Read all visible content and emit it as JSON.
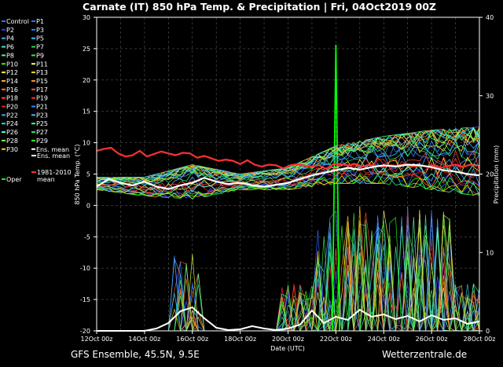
{
  "chart_data": {
    "type": "line",
    "title": "Carnate  (IT)  850 hPa Temp. & Precipitation | Fri, 04Oct2019 00Z",
    "xlabel": "Date (UTC)",
    "ylabel": "850 hPa Temp. (°C)",
    "y2label": "Precipitation (mm)",
    "x_ticks": [
      "12Oct 00z",
      "14Oct 00z",
      "16Oct 00z",
      "18Oct 00z",
      "20Oct 00z",
      "22Oct 00z",
      "24Oct 00z",
      "26Oct 00z",
      "28Oct 00z"
    ],
    "x_range_days": [
      12,
      28
    ],
    "ylim": [
      -20,
      30
    ],
    "y_ticks": [
      30,
      25,
      20,
      15,
      10,
      5,
      0,
      -5,
      -10,
      -15,
      -20
    ],
    "y2lim": [
      0,
      40
    ],
    "y2_ticks": [
      40,
      30,
      20,
      10,
      0
    ],
    "grid": true,
    "legend_position": "left",
    "legend": [
      {
        "label": "Control",
        "color": "#5a5aff"
      },
      {
        "label": "P1",
        "color": "#3a6bff"
      },
      {
        "label": "P2",
        "color": "#3333ff"
      },
      {
        "label": "P3",
        "color": "#2a7fff"
      },
      {
        "label": "P4",
        "color": "#4aa0ff"
      },
      {
        "label": "P5",
        "color": "#30c0ff"
      },
      {
        "label": "P6",
        "color": "#50e0c0"
      },
      {
        "label": "P7",
        "color": "#30d050"
      },
      {
        "label": "P8",
        "color": "#40ff80"
      },
      {
        "label": "P9",
        "color": "#40e040"
      },
      {
        "label": "P10",
        "color": "#20ff20"
      },
      {
        "label": "P11",
        "color": "#ffff80"
      },
      {
        "label": "P12",
        "color": "#e0ff40"
      },
      {
        "label": "P13",
        "color": "#ffd030"
      },
      {
        "label": "P14",
        "color": "#ffb020"
      },
      {
        "label": "P15",
        "color": "#ff9020"
      },
      {
        "label": "P16",
        "color": "#ff7030"
      },
      {
        "label": "P17",
        "color": "#ff5030"
      },
      {
        "label": "P18",
        "color": "#ff4040"
      },
      {
        "label": "P19",
        "color": "#ff3030"
      },
      {
        "label": "P20",
        "color": "#e02020"
      },
      {
        "label": "P21",
        "color": "#4080ff"
      },
      {
        "label": "P22",
        "color": "#40a0ff"
      },
      {
        "label": "P23",
        "color": "#50b0ff"
      },
      {
        "label": "P24",
        "color": "#30d0ff"
      },
      {
        "label": "P25",
        "color": "#40ff80"
      },
      {
        "label": "P26",
        "color": "#60ffa0"
      },
      {
        "label": "P27",
        "color": "#40e060"
      },
      {
        "label": "P28",
        "color": "#80ff40"
      },
      {
        "label": "P29",
        "color": "#30ff30"
      },
      {
        "label": "P30",
        "color": "#ffcc00"
      },
      {
        "label": "Ens. mean",
        "color": "#ffffff"
      },
      {
        "label": "1981-2010 mean",
        "color": "#ff3030"
      },
      {
        "label": "Oper",
        "color": "#00ff00"
      }
    ],
    "climate_mean": {
      "x": [
        12.0,
        12.3,
        12.6,
        12.9,
        13.2,
        13.5,
        13.8,
        14.1,
        14.4,
        14.7,
        15.0,
        15.3,
        15.6,
        15.9,
        16.2,
        16.5,
        16.8,
        17.1,
        17.4,
        17.7,
        18.0,
        18.3,
        18.6,
        18.9,
        19.2,
        19.5,
        19.8,
        20.1,
        20.4,
        20.7,
        21.0,
        21.3,
        21.6,
        21.9,
        22.2,
        22.5,
        22.8,
        23.1,
        23.4,
        23.7,
        24.0,
        24.3,
        24.6,
        24.9,
        25.2,
        25.5,
        25.8,
        26.1,
        26.4,
        26.7,
        27.0,
        27.3,
        27.6,
        27.9
      ],
      "y": [
        8.7,
        9.0,
        9.2,
        8.3,
        7.8,
        8.0,
        8.7,
        7.8,
        8.2,
        8.6,
        8.3,
        8.0,
        8.4,
        8.3,
        7.6,
        7.9,
        7.5,
        7.1,
        7.3,
        7.1,
        6.6,
        7.2,
        6.5,
        6.2,
        6.5,
        6.4,
        5.9,
        6.4,
        6.6,
        6.3,
        6.2,
        6.4,
        5.8,
        6.6,
        6.6,
        6.4,
        6.6,
        6.2,
        6.5,
        6.3,
        6.2,
        6.4,
        6.3,
        6.6,
        6.2,
        6.4,
        6.2,
        6.4,
        6.0,
        6.3,
        6.5,
        6.1,
        6.5,
        6.3
      ]
    },
    "ens_mean_temp": {
      "x": [
        12,
        12.5,
        13,
        13.5,
        14,
        14.5,
        15,
        15.5,
        16,
        16.5,
        17,
        17.5,
        18,
        18.5,
        19,
        19.5,
        20,
        20.5,
        21,
        21.5,
        22,
        22.5,
        23,
        23.5,
        24,
        24.5,
        25,
        25.5,
        26,
        26.5,
        27,
        27.5,
        28
      ],
      "y": [
        3.0,
        4.2,
        3.6,
        3.2,
        3.8,
        3.0,
        2.6,
        3.2,
        3.6,
        4.4,
        3.8,
        3.4,
        3.6,
        3.2,
        3.0,
        3.3,
        3.6,
        4.2,
        4.8,
        5.2,
        5.6,
        6.0,
        5.7,
        6.1,
        6.4,
        6.2,
        6.5,
        6.4,
        6.1,
        5.6,
        5.4,
        5.0,
        4.8
      ]
    },
    "ens_mean_precip": {
      "x": [
        12,
        13,
        14,
        14.5,
        15,
        15.5,
        16,
        16.5,
        17,
        17.5,
        18,
        18.5,
        19,
        19.5,
        20,
        20.5,
        21,
        21.5,
        22,
        22.5,
        23,
        23.5,
        24,
        24.5,
        25,
        25.5,
        26,
        26.5,
        27,
        27.5,
        28
      ],
      "y": [
        0,
        0,
        0,
        0.3,
        1.0,
        2.5,
        3.0,
        1.6,
        0.4,
        0.1,
        0.2,
        0.6,
        0.3,
        0.1,
        0.3,
        0.8,
        2.6,
        1.0,
        1.8,
        1.4,
        2.7,
        1.8,
        2.1,
        1.5,
        1.9,
        1.2,
        2.0,
        1.4,
        1.6,
        0.9,
        1.2
      ]
    },
    "ensemble_temp_spread": {
      "x_days": [
        12,
        14,
        16,
        18,
        20,
        22,
        24,
        26,
        28
      ],
      "min": [
        2.5,
        1.5,
        1.0,
        2.5,
        2.5,
        3.5,
        3.5,
        2.5,
        1.5
      ],
      "max": [
        4.5,
        4.5,
        6.5,
        5.0,
        6.0,
        9.5,
        11.0,
        12.0,
        12.5
      ]
    },
    "oper_peak_precip": {
      "x": 22.0,
      "y": 36.5
    },
    "footer_left": "GFS Ensemble, 45.5N, 9.5E",
    "footer_right": "Wetterzentrale.de"
  }
}
